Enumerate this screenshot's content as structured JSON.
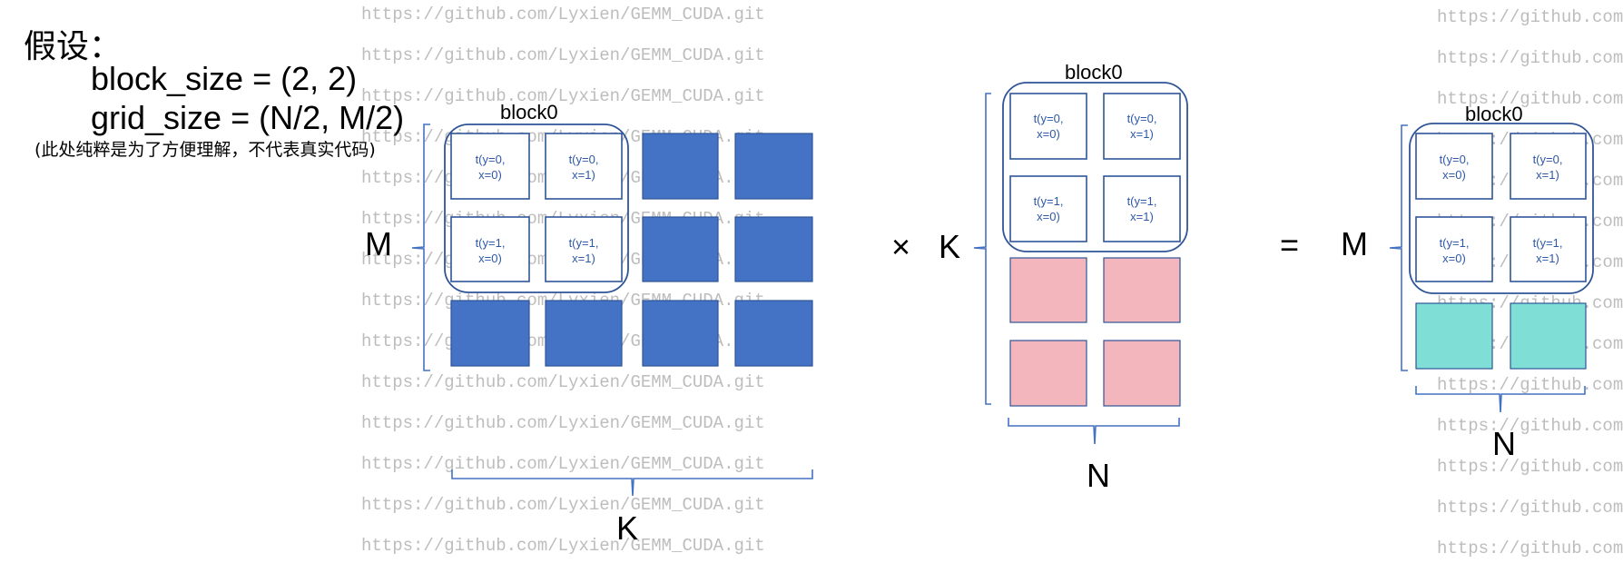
{
  "assumption": {
    "title": "假设：",
    "block_size": "block_size = (2, 2)",
    "grid_size": "grid_size = (N/2, M/2)",
    "note": "(此处纯粹是为了方便理解，不代表真实代码)"
  },
  "watermark": "https://github.com/Lyxien/GEMM_CUDA.git",
  "operators": {
    "times": "×",
    "equals": "="
  },
  "block_label": "block0",
  "matrix_a": {
    "row_label": "M",
    "col_label": "K"
  },
  "matrix_b": {
    "row_label": "K",
    "col_label": "N"
  },
  "matrix_c": {
    "row_label": "M",
    "col_label": "N"
  },
  "threads": {
    "t00": [
      "t(y=0,",
      "x=0)"
    ],
    "t01": [
      "t(y=0,",
      "x=1)"
    ],
    "t10": [
      "t(y=1,",
      "x=0)"
    ],
    "t11": [
      "t(y=1,",
      "x=1)"
    ]
  },
  "colors": {
    "tile_blue": "#4472c4",
    "tile_pink": "#f4b6bd",
    "tile_teal": "#7fded6",
    "outline": "#2f5597"
  }
}
